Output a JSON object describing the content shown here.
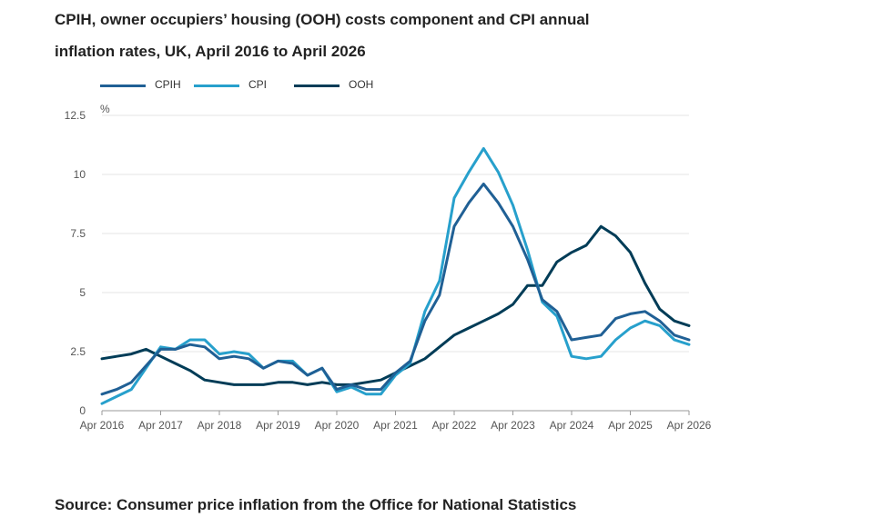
{
  "title": {
    "line1": "CPIH, owner occupiers’ housing (OOH) costs component and CPI annual",
    "line2": "inflation rates, UK, April 2016 to April 2026"
  },
  "source": "Source: Consumer price inflation from the Office for National Statistics",
  "colors": {
    "CPIH": "#206095",
    "CPI": "#27a0cc",
    "OOH": "#003c57",
    "grid": "#e4e4e4",
    "axis": "#999999"
  },
  "chart_data": {
    "type": "line",
    "unit_label": "%",
    "ylim": [
      0,
      12.5
    ],
    "yticks": [
      0,
      2.5,
      5,
      7.5,
      10,
      12.5
    ],
    "ytick_labels": [
      "0",
      "2.5",
      "5",
      "7.5",
      "10",
      "12.5"
    ],
    "xlim": [
      "2016-04",
      "2026-04"
    ],
    "xticks": [
      "2016-04",
      "2017-04",
      "2018-04",
      "2019-04",
      "2020-04",
      "2021-04",
      "2022-04",
      "2023-04",
      "2024-04",
      "2025-04",
      "2026-04"
    ],
    "xtick_labels": [
      "Apr 2016",
      "Apr 2017",
      "Apr 2018",
      "Apr 2019",
      "Apr 2020",
      "Apr 2021",
      "Apr 2022",
      "Apr 2023",
      "Apr 2024",
      "Apr 2025",
      "Apr 2026"
    ],
    "grid": "horizontal",
    "legend_position": "top-left",
    "series": [
      {
        "name": "CPIH",
        "points": [
          [
            "2016-04",
            0.7
          ],
          [
            "2016-07",
            0.9
          ],
          [
            "2016-10",
            1.2
          ],
          [
            "2017-01",
            1.9
          ],
          [
            "2017-04",
            2.6
          ],
          [
            "2017-07",
            2.6
          ],
          [
            "2017-10",
            2.8
          ],
          [
            "2018-01",
            2.7
          ],
          [
            "2018-04",
            2.2
          ],
          [
            "2018-07",
            2.3
          ],
          [
            "2018-10",
            2.2
          ],
          [
            "2019-01",
            1.8
          ],
          [
            "2019-04",
            2.1
          ],
          [
            "2019-07",
            2.0
          ],
          [
            "2019-10",
            1.5
          ],
          [
            "2020-01",
            1.8
          ],
          [
            "2020-04",
            0.9
          ],
          [
            "2020-07",
            1.1
          ],
          [
            "2020-10",
            0.9
          ],
          [
            "2021-01",
            0.9
          ],
          [
            "2021-04",
            1.6
          ],
          [
            "2021-07",
            2.1
          ],
          [
            "2021-10",
            3.8
          ],
          [
            "2022-01",
            4.9
          ],
          [
            "2022-04",
            7.8
          ],
          [
            "2022-07",
            8.8
          ],
          [
            "2022-10",
            9.6
          ],
          [
            "2023-01",
            8.8
          ],
          [
            "2023-04",
            7.8
          ],
          [
            "2023-07",
            6.4
          ],
          [
            "2023-10",
            4.7
          ],
          [
            "2024-01",
            4.2
          ],
          [
            "2024-04",
            3.0
          ],
          [
            "2024-07",
            3.1
          ],
          [
            "2024-10",
            3.2
          ],
          [
            "2025-01",
            3.9
          ],
          [
            "2025-04",
            4.1
          ],
          [
            "2025-07",
            4.2
          ],
          [
            "2025-10",
            3.8
          ],
          [
            "2026-01",
            3.2
          ],
          [
            "2026-04",
            3.0
          ]
        ]
      },
      {
        "name": "CPI",
        "points": [
          [
            "2016-04",
            0.3
          ],
          [
            "2016-07",
            0.6
          ],
          [
            "2016-10",
            0.9
          ],
          [
            "2017-01",
            1.8
          ],
          [
            "2017-04",
            2.7
          ],
          [
            "2017-07",
            2.6
          ],
          [
            "2017-10",
            3.0
          ],
          [
            "2018-01",
            3.0
          ],
          [
            "2018-04",
            2.4
          ],
          [
            "2018-07",
            2.5
          ],
          [
            "2018-10",
            2.4
          ],
          [
            "2019-01",
            1.8
          ],
          [
            "2019-04",
            2.1
          ],
          [
            "2019-07",
            2.1
          ],
          [
            "2019-10",
            1.5
          ],
          [
            "2020-01",
            1.8
          ],
          [
            "2020-04",
            0.8
          ],
          [
            "2020-07",
            1.0
          ],
          [
            "2020-10",
            0.7
          ],
          [
            "2021-01",
            0.7
          ],
          [
            "2021-04",
            1.5
          ],
          [
            "2021-07",
            2.0
          ],
          [
            "2021-10",
            4.2
          ],
          [
            "2022-01",
            5.5
          ],
          [
            "2022-04",
            9.0
          ],
          [
            "2022-07",
            10.1
          ],
          [
            "2022-10",
            11.1
          ],
          [
            "2023-01",
            10.1
          ],
          [
            "2023-04",
            8.7
          ],
          [
            "2023-07",
            6.8
          ],
          [
            "2023-10",
            4.6
          ],
          [
            "2024-01",
            4.0
          ],
          [
            "2024-04",
            2.3
          ],
          [
            "2024-07",
            2.2
          ],
          [
            "2024-10",
            2.3
          ],
          [
            "2025-01",
            3.0
          ],
          [
            "2025-04",
            3.5
          ],
          [
            "2025-07",
            3.8
          ],
          [
            "2025-10",
            3.6
          ],
          [
            "2026-01",
            3.0
          ],
          [
            "2026-04",
            2.8
          ]
        ]
      },
      {
        "name": "OOH",
        "points": [
          [
            "2016-04",
            2.2
          ],
          [
            "2016-07",
            2.3
          ],
          [
            "2016-10",
            2.4
          ],
          [
            "2017-01",
            2.6
          ],
          [
            "2017-04",
            2.3
          ],
          [
            "2017-07",
            2.0
          ],
          [
            "2017-10",
            1.7
          ],
          [
            "2018-01",
            1.3
          ],
          [
            "2018-04",
            1.2
          ],
          [
            "2018-07",
            1.1
          ],
          [
            "2018-10",
            1.1
          ],
          [
            "2019-01",
            1.1
          ],
          [
            "2019-04",
            1.2
          ],
          [
            "2019-07",
            1.2
          ],
          [
            "2019-10",
            1.1
          ],
          [
            "2020-01",
            1.2
          ],
          [
            "2020-04",
            1.1
          ],
          [
            "2020-07",
            1.1
          ],
          [
            "2020-10",
            1.2
          ],
          [
            "2021-01",
            1.3
          ],
          [
            "2021-04",
            1.6
          ],
          [
            "2021-07",
            1.9
          ],
          [
            "2021-10",
            2.2
          ],
          [
            "2022-01",
            2.7
          ],
          [
            "2022-04",
            3.2
          ],
          [
            "2022-07",
            3.5
          ],
          [
            "2022-10",
            3.8
          ],
          [
            "2023-01",
            4.1
          ],
          [
            "2023-04",
            4.5
          ],
          [
            "2023-07",
            5.3
          ],
          [
            "2023-10",
            5.3
          ],
          [
            "2024-01",
            6.3
          ],
          [
            "2024-04",
            6.7
          ],
          [
            "2024-07",
            7.0
          ],
          [
            "2024-10",
            7.8
          ],
          [
            "2025-01",
            7.4
          ],
          [
            "2025-04",
            6.7
          ],
          [
            "2025-07",
            5.4
          ],
          [
            "2025-10",
            4.3
          ],
          [
            "2026-01",
            3.8
          ],
          [
            "2026-04",
            3.6
          ]
        ]
      }
    ]
  }
}
